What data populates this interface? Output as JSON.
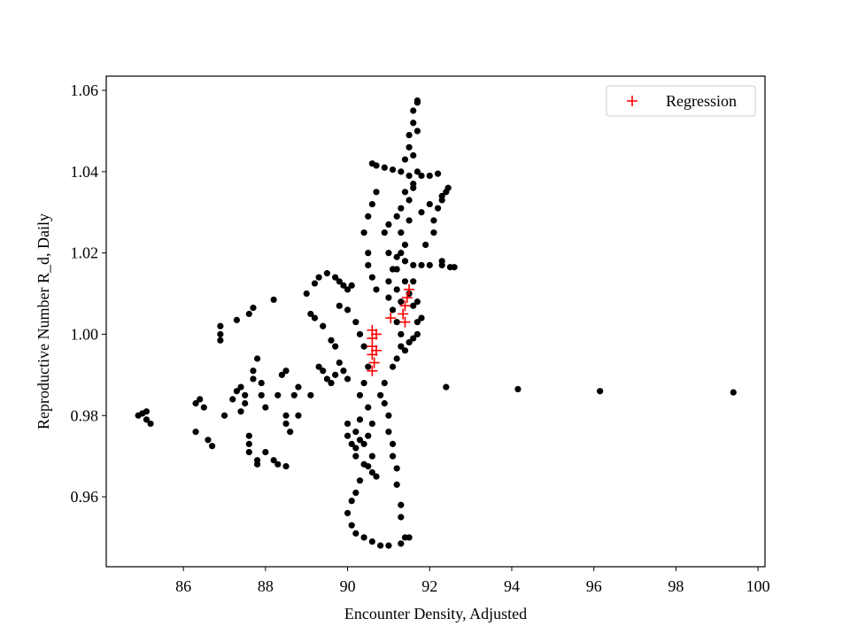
{
  "chart_data": {
    "type": "scatter",
    "xlabel": "Encounter Density, Adjusted",
    "ylabel": "Reproductive Number R_d, Daily",
    "xlim": [
      84.12,
      100.17
    ],
    "ylim": [
      0.9428,
      1.0635
    ],
    "xticks": [
      86,
      88,
      90,
      92,
      94,
      96,
      98,
      100
    ],
    "yticks": [
      0.96,
      0.98,
      {
        "value": 1,
        "label": "1.00"
      },
      1.02,
      1.04,
      1.06
    ],
    "legend": "upper right",
    "series": [
      {
        "color": "#000000",
        "marker": "o",
        "x": [
          92.4,
          94.15,
          96.15,
          99.4,
          84.9,
          85.0,
          85.1,
          85.1,
          85.2,
          86.3,
          86.4,
          86.5,
          86.3,
          86.6,
          86.7,
          86.9,
          86.9,
          86.9,
          87.3,
          87.6,
          87.7,
          87.0,
          87.2,
          87.3,
          87.4,
          87.4,
          87.5,
          87.5,
          87.6,
          87.6,
          87.6,
          87.8,
          87.8,
          87.8,
          87.7,
          87.7,
          87.9,
          87.9,
          88.0,
          88.0,
          88.2,
          88.3,
          88.5,
          88.2,
          88.3,
          88.4,
          88.5,
          88.5,
          88.5,
          88.6,
          88.7,
          88.8,
          88.8,
          89.1,
          89.0,
          89.2,
          89.3,
          89.5,
          89.1,
          89.2,
          89.4,
          89.6,
          89.7,
          89.3,
          89.4,
          89.5,
          89.6,
          89.7,
          89.8,
          89.9,
          90.0,
          89.8,
          89.9,
          90.0,
          90.1,
          89.7,
          89.8,
          90.0,
          90.2,
          90.3,
          90.4,
          90.5,
          90.4,
          90.3,
          90.5,
          90.3,
          90.2,
          90.0,
          90.0,
          90.1,
          90.2,
          90.3,
          90.2,
          90.4,
          90.5,
          90.6,
          90.7,
          90.6,
          90.3,
          90.2,
          90.1,
          90.0,
          90.1,
          90.2,
          90.4,
          90.6,
          90.8,
          91.0,
          91.3,
          91.4,
          91.5,
          91.3,
          91.3,
          91.2,
          91.2,
          91.1,
          91.1,
          91.0,
          91.0,
          90.9,
          90.8,
          90.9,
          90.6,
          90.5,
          90.4,
          90.6,
          90.7,
          90.9,
          91.1,
          91.3,
          91.4,
          91.5,
          91.5,
          91.6,
          91.6,
          91.7,
          91.7,
          91.5,
          91.6,
          91.8,
          92.0,
          92.2,
          91.4,
          91.5,
          91.3,
          91.2,
          91.0,
          90.9,
          90.7,
          90.6,
          90.5,
          90.4,
          90.5,
          90.5,
          90.6,
          90.7,
          91.0,
          91.2,
          91.4,
          91.6,
          91.8,
          92.0,
          92.3,
          92.5,
          92.6,
          92.3,
          91.9,
          92.1,
          92.1,
          92.2,
          92.3,
          92.4,
          92.45,
          92.3,
          92.0,
          91.8,
          91.5,
          91.3,
          91.4,
          91.3,
          91.1,
          91.0,
          91.0,
          91.1,
          91.2,
          91.3,
          91.3,
          91.2,
          91.1,
          91.4,
          91.6,
          91.7,
          91.6,
          91.5,
          91.6,
          91.7,
          91.8,
          91.7,
          91.5,
          91.3,
          91.2,
          91.4,
          91.2,
          91.6,
          91.7,
          91.6,
          91.7
        ],
        "values": [
          0.987,
          0.9865,
          0.986,
          0.9857,
          0.98,
          0.9805,
          0.981,
          0.979,
          0.978,
          0.983,
          0.984,
          0.982,
          0.976,
          0.974,
          0.9725,
          0.9985,
          1.0,
          1.002,
          1.0035,
          1.005,
          1.0065,
          0.98,
          0.984,
          0.986,
          0.987,
          0.981,
          0.983,
          0.985,
          0.975,
          0.973,
          0.971,
          0.968,
          0.969,
          0.994,
          0.991,
          0.989,
          0.988,
          0.985,
          0.982,
          0.971,
          0.969,
          0.968,
          0.9675,
          1.0085,
          0.985,
          0.99,
          0.991,
          0.98,
          0.978,
          0.976,
          0.985,
          0.987,
          0.98,
          0.985,
          1.01,
          1.0125,
          1.014,
          1.015,
          1.005,
          1.004,
          1.002,
          0.9985,
          0.997,
          0.992,
          0.991,
          0.989,
          0.988,
          0.99,
          0.993,
          0.991,
          0.989,
          1.013,
          1.012,
          1.011,
          1.012,
          1.014,
          1.007,
          1.006,
          1.003,
          1.0,
          0.997,
          0.992,
          0.988,
          0.985,
          0.982,
          0.979,
          0.976,
          0.978,
          0.975,
          0.973,
          0.972,
          0.974,
          0.97,
          0.968,
          0.9675,
          0.966,
          0.965,
          0.97,
          0.964,
          0.961,
          0.959,
          0.956,
          0.953,
          0.951,
          0.95,
          0.949,
          0.948,
          0.948,
          0.9485,
          0.95,
          0.95,
          0.955,
          0.958,
          0.963,
          0.967,
          0.97,
          0.973,
          0.976,
          0.98,
          0.983,
          0.985,
          0.988,
          0.978,
          0.975,
          0.973,
          1.042,
          1.0415,
          1.041,
          1.0405,
          1.04,
          1.043,
          1.046,
          1.049,
          1.052,
          1.055,
          1.057,
          1.0575,
          1.039,
          1.037,
          1.039,
          1.039,
          1.0395,
          1.035,
          1.033,
          1.031,
          1.029,
          1.027,
          1.025,
          1.035,
          1.032,
          1.029,
          1.025,
          1.02,
          1.017,
          1.014,
          1.011,
          1.02,
          1.019,
          1.018,
          1.017,
          1.017,
          1.017,
          1.017,
          1.0165,
          1.0165,
          1.018,
          1.022,
          1.025,
          1.028,
          1.031,
          1.033,
          1.035,
          1.036,
          1.034,
          1.032,
          1.03,
          1.028,
          1.025,
          1.022,
          1.02,
          1.016,
          1.013,
          1.009,
          1.006,
          1.003,
          1.0,
          0.997,
          0.994,
          0.992,
          0.996,
          0.999,
          1.003,
          1.007,
          1.01,
          1.013,
          1.008,
          1.004,
          1.0,
          0.998,
          1.008,
          1.011,
          1.013,
          1.016,
          1.036,
          1.04,
          1.044,
          1.05
        ]
      },
      {
        "name": "Regression",
        "color": "#ff0000",
        "marker": "+",
        "x": [
          90.6,
          90.6,
          90.6,
          90.6,
          90.65,
          90.6,
          90.7,
          90.7,
          91.05,
          91.35,
          91.4,
          91.45,
          91.5,
          91.4
        ],
        "values": [
          1.001,
          0.999,
          0.997,
          0.995,
          0.993,
          0.991,
          1.0,
          0.996,
          1.004,
          1.005,
          1.007,
          1.009,
          1.011,
          1.003
        ]
      }
    ]
  }
}
